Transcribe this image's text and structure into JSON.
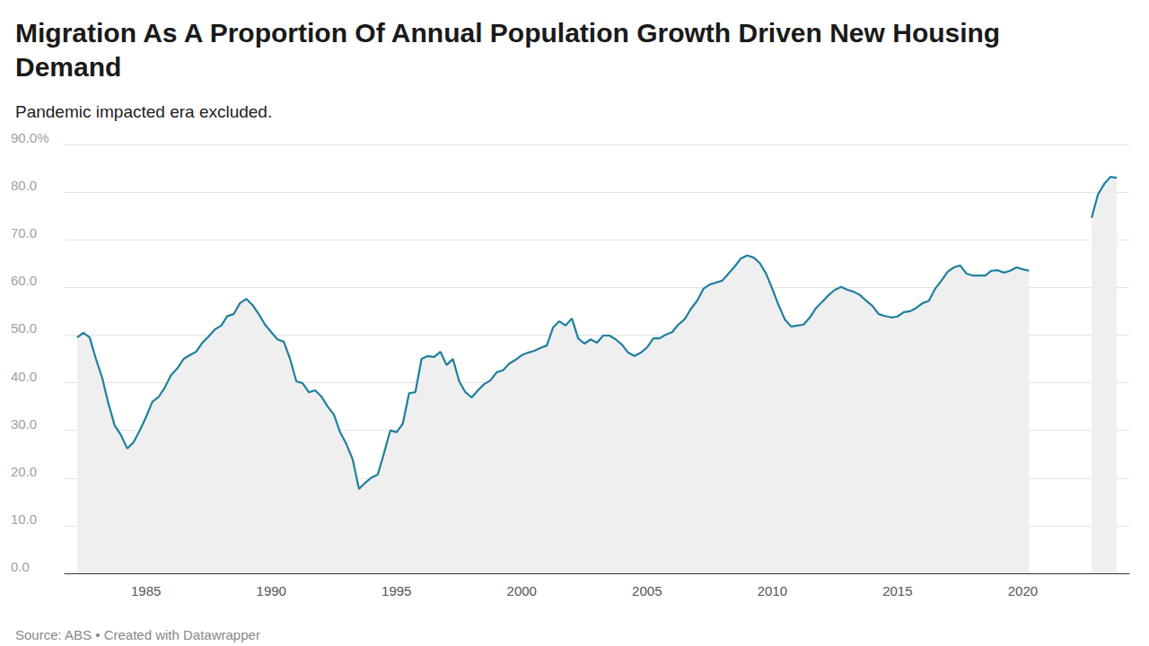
{
  "chart_data": {
    "type": "line",
    "title": "Migration As A Proportion Of Annual Population Growth Driven New Housing Demand",
    "subtitle": "Pandemic impacted era excluded.",
    "source": "Source: ABS • Created with Datawrapper",
    "color": "#1f7f9f",
    "grid": true,
    "x": [
      1982.25,
      1982.5,
      1982.75,
      1983,
      1983.25,
      1983.5,
      1983.75,
      1984,
      1984.25,
      1984.5,
      1984.75,
      1985,
      1985.25,
      1985.5,
      1985.75,
      1986,
      1986.25,
      1986.5,
      1986.75,
      1987,
      1987.25,
      1987.5,
      1987.75,
      1988,
      1988.25,
      1988.5,
      1988.75,
      1989,
      1989.25,
      1989.5,
      1989.75,
      1990,
      1990.25,
      1990.5,
      1990.75,
      1991,
      1991.25,
      1991.5,
      1991.75,
      1992,
      1992.25,
      1992.5,
      1992.75,
      1993,
      1993.25,
      1993.5,
      1993.75,
      1994,
      1994.25,
      1994.5,
      1994.75,
      1995,
      1995.25,
      1995.5,
      1995.75,
      1996,
      1996.25,
      1996.5,
      1996.75,
      1997,
      1997.25,
      1997.5,
      1997.75,
      1998,
      1998.25,
      1998.5,
      1998.75,
      1999,
      1999.25,
      1999.5,
      1999.75,
      2000,
      2000.25,
      2000.5,
      2000.75,
      2001,
      2001.25,
      2001.5,
      2001.75,
      2002,
      2002.25,
      2002.5,
      2002.75,
      2003,
      2003.25,
      2003.5,
      2003.75,
      2004,
      2004.25,
      2004.5,
      2004.75,
      2005,
      2005.25,
      2005.5,
      2005.75,
      2006,
      2006.25,
      2006.5,
      2006.75,
      2007,
      2007.25,
      2007.5,
      2007.75,
      2008,
      2008.25,
      2008.5,
      2008.75,
      2009,
      2009.25,
      2009.5,
      2009.75,
      2010,
      2010.25,
      2010.5,
      2010.75,
      2011,
      2011.25,
      2011.5,
      2011.75,
      2012,
      2012.25,
      2012.5,
      2012.75,
      2013,
      2013.25,
      2013.5,
      2013.75,
      2014,
      2014.25,
      2014.5,
      2014.75,
      2015,
      2015.25,
      2015.5,
      2015.75,
      2016,
      2016.25,
      2016.5,
      2016.75,
      2017,
      2017.25,
      2017.5,
      2017.75,
      2018,
      2018.25,
      2018.5,
      2018.75,
      2019,
      2019.25,
      2019.5,
      2019.75,
      2020,
      2020.25,
      2021.5,
      2022.75,
      2023,
      2023.25,
      2023.5,
      2023.75
    ],
    "values": [
      49.5,
      50.5,
      49.5,
      45,
      41,
      35.6,
      31,
      29,
      26.2,
      27.5,
      30,
      32.8,
      36,
      37,
      39,
      41.6,
      43,
      45,
      45.8,
      46.5,
      48.4,
      49.7,
      51.2,
      52,
      54,
      54.4,
      56.7,
      57.6,
      56.3,
      54.4,
      52.2,
      50.6,
      49.1,
      48.6,
      45,
      40.3,
      39.9,
      38,
      38.4,
      37.1,
      35,
      33.3,
      29.6,
      27.1,
      23.9,
      17.7,
      19,
      20.1,
      20.7,
      25.2,
      30,
      29.6,
      31.4,
      37.8,
      38,
      45,
      45.6,
      45.4,
      46.5,
      43.7,
      45,
      40.3,
      38,
      36.9,
      38.4,
      39.7,
      40.5,
      42.2,
      42.6,
      44,
      44.8,
      45.8,
      46.3,
      46.7,
      47.3,
      47.8,
      51.6,
      52.9,
      52,
      53.5,
      49.3,
      48.2,
      49.1,
      48.4,
      49.9,
      49.9,
      49.1,
      48,
      46.3,
      45.6,
      46.3,
      47.4,
      49.3,
      49.3,
      50.1,
      50.6,
      52.2,
      53.3,
      55.5,
      57.2,
      59.7,
      60.6,
      61,
      61.4,
      62.9,
      64.4,
      66.1,
      66.7,
      66.3,
      65.1,
      62.9,
      59.7,
      56.3,
      53.3,
      51.8,
      52,
      52.2,
      53.7,
      55.7,
      57,
      58.4,
      59.5,
      60.1,
      59.5,
      59.1,
      58.4,
      57.2,
      56.1,
      54.4,
      54,
      53.7,
      53.9,
      54.8,
      55,
      55.7,
      56.7,
      57.2,
      59.7,
      61.4,
      63.3,
      64.2,
      64.6,
      62.9,
      62.5,
      62.5,
      62.5,
      63.5,
      63.6,
      63.1,
      63.5,
      64.2,
      63.8,
      63.5,
      null,
      74.6,
      79.5,
      81.7,
      83.2,
      83
    ],
    "xlim": [
      1981.75,
      2024.25
    ],
    "xticks": [
      1985,
      1990,
      1995,
      2000,
      2005,
      2010,
      2015,
      2020
    ],
    "ylim": [
      0,
      90
    ],
    "yticks": [
      {
        "value": 0,
        "label": "0.0"
      },
      {
        "value": 10,
        "label": "10.0"
      },
      {
        "value": 20,
        "label": "20.0"
      },
      {
        "value": 30,
        "label": "30.0"
      },
      {
        "value": 40,
        "label": "40.0"
      },
      {
        "value": 50,
        "label": "50.0"
      },
      {
        "value": 60,
        "label": "60.0"
      },
      {
        "value": 70,
        "label": "70.0"
      },
      {
        "value": 80,
        "label": "80.0"
      },
      {
        "value": 90,
        "label": "90.0%"
      }
    ]
  }
}
